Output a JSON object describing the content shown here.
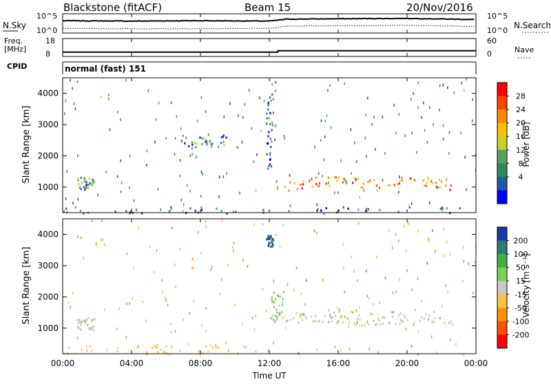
{
  "header": {
    "station": "Blackstone (fitACF)",
    "beam": "Beam 15",
    "date": "20/Nov/2016"
  },
  "noise_panel": {
    "left_label": "N.Sky",
    "right_label": "N.Search",
    "top_tick": "10^5",
    "bottom_tick": "10^0"
  },
  "freq_panel": {
    "left_label_1": "Freq.",
    "left_label_2": "[MHz]",
    "right_label": "Nave",
    "left_ticks": [
      "18",
      "8"
    ],
    "right_ticks": [
      "60",
      "0"
    ]
  },
  "cpid_panel": {
    "label": "CPID",
    "text": "normal (fast) 151"
  },
  "power_panel": {
    "ylabel": "Slant Range [km]",
    "yticks": [
      "4000",
      "3000",
      "2000",
      "1000"
    ],
    "cbar_label": "Power [dB]",
    "cbar_ticks": [
      "28",
      "24",
      "20",
      "16",
      "12",
      "8",
      "4"
    ],
    "cbar_colors": [
      "#ff0000",
      "#ff4400",
      "#ff8800",
      "#ffc000",
      "#c8d020",
      "#58a060",
      "#2e8b57",
      "#1e5aa8",
      "#0000ff"
    ]
  },
  "velocity_panel": {
    "ylabel": "Slant Range [km]",
    "yticks": [
      "4000",
      "3000",
      "2000",
      "1000"
    ],
    "cbar_label": "Velocity [m s⁻¹]",
    "cbar_ticks": [
      "200",
      "100",
      "50",
      "15",
      "-15",
      "-50",
      "-100",
      "-200"
    ],
    "cbar_colors": [
      "#1a3aa8",
      "#2e7a70",
      "#40b040",
      "#7ad050",
      "#c8c8c8",
      "#ffc040",
      "#ff9000",
      "#ff5000",
      "#ff0000"
    ]
  },
  "xaxis": {
    "ticks": [
      "00:00",
      "04:00",
      "08:00",
      "12:00",
      "16:00",
      "20:00",
      "00:00"
    ],
    "label": "Time UT"
  },
  "chart_data": [
    {
      "type": "line",
      "name": "noise",
      "x": [
        "00:00",
        "04:00",
        "08:00",
        "12:00",
        "13:00",
        "16:00",
        "20:00",
        "24:00"
      ],
      "series": [
        {
          "name": "N.Sky",
          "values": [
            3.2,
            3.1,
            3.2,
            3.1,
            3.6,
            3.7,
            3.8,
            3.5
          ]
        },
        {
          "name": "N.Search",
          "values": [
            1.2,
            1.1,
            1.1,
            1.2,
            1.8,
            1.9,
            2.0,
            1.7
          ]
        }
      ],
      "ylim_log10": [
        0,
        5
      ]
    },
    {
      "type": "line",
      "name": "frequency",
      "x": [
        "00:00",
        "12:30",
        "12:30",
        "24:00"
      ],
      "series": [
        {
          "name": "Freq.",
          "values": [
            10.4,
            10.4,
            11.2,
            11.2
          ]
        }
      ],
      "ylim": [
        8,
        18
      ]
    },
    {
      "type": "heatmap",
      "name": "power",
      "xlim": [
        "00:00",
        "24:00"
      ],
      "ylim": [
        180,
        4500
      ],
      "zlim": [
        0,
        30
      ],
      "features": [
        {
          "label": "ground scatter",
          "t": [
            0.0,
            24.0
          ],
          "r": [
            180,
            400
          ],
          "z": 8
        },
        {
          "label": "patch",
          "t": [
            0.8,
            1.9
          ],
          "r": [
            950,
            1350
          ],
          "z": 10
        },
        {
          "label": "main band",
          "t": [
            12.3,
            22.6
          ],
          "r": [
            800,
            1500
          ],
          "z": 22
        },
        {
          "label": "spike",
          "t": [
            11.8,
            12.2
          ],
          "r": [
            1600,
            4000
          ],
          "z": 6
        },
        {
          "label": "mid scatter",
          "t": [
            6.5,
            10.2
          ],
          "r": [
            2300,
            2700
          ],
          "z": 8
        }
      ]
    },
    {
      "type": "heatmap",
      "name": "velocity",
      "xlim": [
        "00:00",
        "24:00"
      ],
      "ylim": [
        180,
        4500
      ],
      "zlim": [
        -250,
        250
      ],
      "features": [
        {
          "label": "ground scatter",
          "t": [
            0.0,
            12.0
          ],
          "r": [
            180,
            500
          ],
          "v": -30
        },
        {
          "label": "patch",
          "t": [
            0.8,
            1.9
          ],
          "r": [
            950,
            1400
          ],
          "v": 0
        },
        {
          "label": "main band",
          "t": [
            12.3,
            22.6
          ],
          "r": [
            900,
            1800
          ],
          "v": 0
        },
        {
          "label": "edge",
          "t": [
            12.0,
            12.8
          ],
          "r": [
            1200,
            2200
          ],
          "v": 30
        },
        {
          "label": "spike",
          "t": [
            11.8,
            12.2
          ],
          "r": [
            3600,
            4000
          ],
          "v": 200
        }
      ]
    }
  ]
}
